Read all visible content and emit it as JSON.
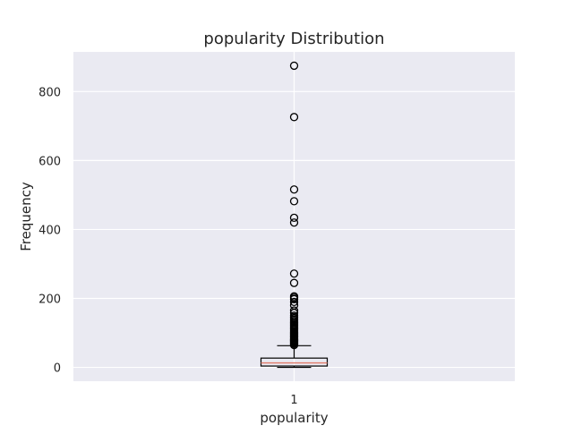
{
  "chart_data": {
    "type": "box",
    "title": "popularity Distribution",
    "xlabel": "popularity",
    "ylabel": "Frequency",
    "x_tick_labels": [
      "1"
    ],
    "y_ticks": [
      0,
      200,
      400,
      600,
      800
    ],
    "ylim": [
      -40,
      915
    ],
    "grid": true,
    "colors": {
      "background": "#eaeaf2",
      "grid": "#ffffff",
      "box_edge": "#000000",
      "median": "#e07b6a",
      "outlier": "#000000"
    },
    "series": [
      {
        "category": "1",
        "min": 0,
        "q1": 4,
        "median": 13,
        "q3": 27,
        "whisker_high": 63,
        "outliers": [
          65,
          68,
          70,
          72,
          75,
          78,
          80,
          82,
          85,
          88,
          90,
          92,
          95,
          98,
          100,
          103,
          106,
          110,
          113,
          116,
          120,
          123,
          126,
          130,
          134,
          138,
          142,
          146,
          150,
          158,
          165,
          180,
          190,
          198,
          202,
          206,
          245,
          272,
          420,
          434,
          482,
          516,
          726,
          875
        ]
      }
    ]
  }
}
